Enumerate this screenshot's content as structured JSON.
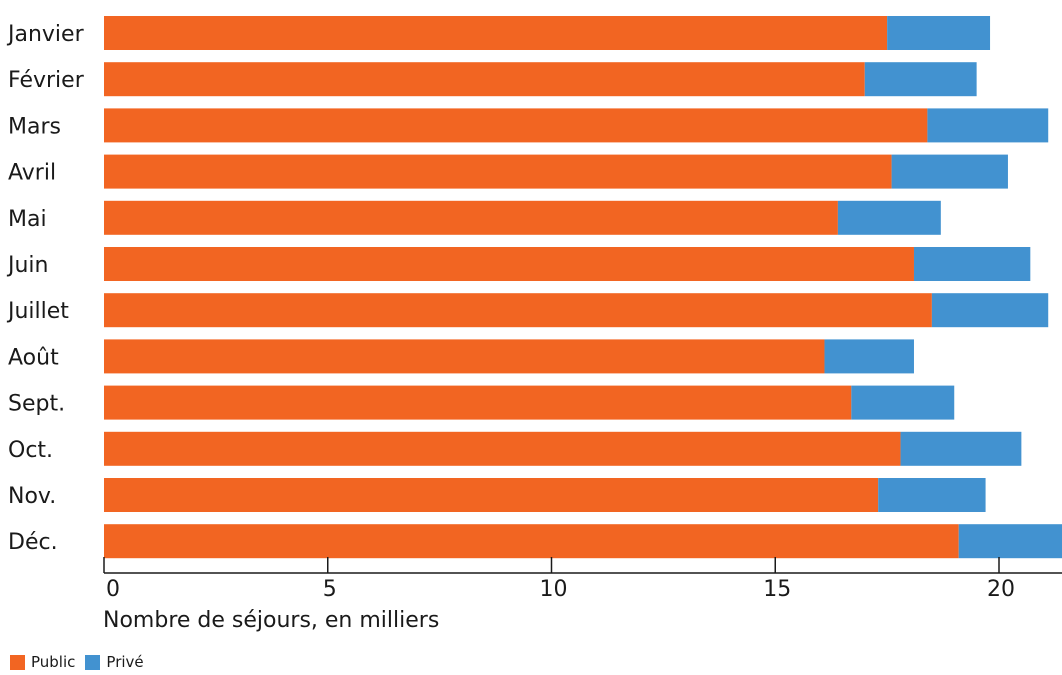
{
  "chart_data": {
    "type": "bar",
    "orientation": "horizontal",
    "stacked": true,
    "categories": [
      "Janvier",
      "Février",
      "Mars",
      "Avril",
      "Mai",
      "Juin",
      "Juillet",
      "Août",
      "Sept.",
      "Oct.",
      "Nov.",
      "Déc."
    ],
    "series": [
      {
        "name": "Public",
        "color": "#f26522",
        "values": [
          17.5,
          17.0,
          18.4,
          17.6,
          16.4,
          18.1,
          18.5,
          16.1,
          16.7,
          17.8,
          17.3,
          19.1
        ]
      },
      {
        "name": "Privé",
        "color": "#4292d0",
        "values": [
          2.3,
          2.5,
          2.7,
          2.6,
          2.3,
          2.6,
          2.6,
          2.0,
          2.3,
          2.7,
          2.4,
          2.4
        ]
      }
    ],
    "xlabel": "Nombre de séjours, en milliers",
    "xlim": [
      0,
      21.4
    ],
    "xticks": [
      "0",
      "5",
      "10",
      "15",
      "20"
    ],
    "tick_values": [
      0,
      5,
      10,
      15,
      20
    ],
    "grid": false,
    "legend_position": "bottom-left"
  }
}
